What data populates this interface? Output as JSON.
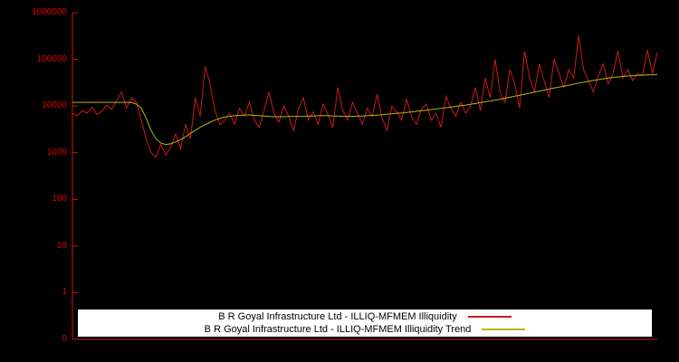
{
  "chart_data": {
    "type": "line",
    "title": "",
    "xlabel": "",
    "ylabel": "",
    "y_scale": "log",
    "ylog_min": -1,
    "ylog_max": 6,
    "grid": false,
    "legend_position": "bottom-center",
    "background_color": "#000000",
    "axis_color": "#cc1414",
    "tick_label_color": "#e00000",
    "y_ticks": [
      {
        "label": "1000000",
        "log": 6
      },
      {
        "label": "100000",
        "log": 5
      },
      {
        "label": "10000",
        "log": 4
      },
      {
        "label": "1000",
        "log": 3
      },
      {
        "label": "100",
        "log": 2
      },
      {
        "label": "10",
        "log": 1
      },
      {
        "label": "1",
        "log": 0
      },
      {
        "label": "0",
        "log": -1
      }
    ],
    "series": [
      {
        "name": "B R Goyal Infrastructure Ltd - ILLIQ-MFMEM Illiquidity",
        "color": "#cc1a1a",
        "values": [
          7000,
          6200,
          8000,
          7000,
          9500,
          6500,
          7800,
          10500,
          8500,
          13000,
          20000,
          9000,
          15000,
          12000,
          5000,
          2000,
          1000,
          800,
          1500,
          900,
          1300,
          2500,
          1200,
          4000,
          2000,
          15000,
          6000,
          70000,
          30000,
          8000,
          4000,
          5000,
          7000,
          4000,
          9000,
          6000,
          12000,
          5000,
          3500,
          8000,
          20000,
          7000,
          4500,
          10000,
          6000,
          3000,
          9000,
          15000,
          5000,
          7500,
          4000,
          11000,
          6500,
          3500,
          25000,
          8000,
          5000,
          12000,
          7000,
          4000,
          9000,
          6000,
          18000,
          5500,
          3000,
          10000,
          7500,
          5000,
          14000,
          6000,
          4000,
          8500,
          11000,
          5000,
          7000,
          3500,
          16000,
          9000,
          6000,
          12000,
          7000,
          10000,
          25000,
          8000,
          40000,
          15000,
          100000,
          20000,
          12000,
          60000,
          30000,
          9000,
          150000,
          40000,
          20000,
          80000,
          35000,
          15000,
          100000,
          50000,
          25000,
          60000,
          40000,
          330000,
          60000,
          35000,
          20000,
          45000,
          80000,
          30000,
          50000,
          150000,
          40000,
          60000,
          35000,
          50000,
          45000,
          160000,
          50000,
          140000
        ]
      },
      {
        "name": "B R Goyal Infrastructure Ltd - ILLIQ-MFMEM Illiquidity Trend",
        "color": "#b5b513",
        "values": [
          12000,
          12000,
          12000,
          12000,
          12000,
          12000,
          12000,
          12000,
          12000,
          12000,
          12000,
          12000,
          12000,
          11000,
          9000,
          5500,
          3000,
          2000,
          1600,
          1500,
          1550,
          1700,
          1900,
          2200,
          2600,
          3000,
          3500,
          4000,
          4500,
          5000,
          5400,
          5800,
          6000,
          6200,
          6300,
          6400,
          6400,
          6300,
          6200,
          6100,
          6000,
          5900,
          5900,
          5900,
          6000,
          6000,
          6000,
          6000,
          6100,
          6100,
          6200,
          6200,
          6200,
          6100,
          6100,
          6000,
          6000,
          6000,
          6100,
          6100,
          6200,
          6300,
          6400,
          6500,
          6700,
          6800,
          7000,
          7100,
          7300,
          7500,
          7700,
          7900,
          8100,
          8400,
          8600,
          8900,
          9200,
          9500,
          9800,
          10200,
          10500,
          10900,
          11300,
          11800,
          12300,
          12800,
          13400,
          14000,
          14700,
          15400,
          16200,
          17000,
          17900,
          18800,
          19800,
          20800,
          21900,
          23000,
          24200,
          25400,
          26700,
          28000,
          29400,
          30800,
          32300,
          33800,
          35300,
          36800,
          38300,
          39800,
          41000,
          42000,
          43000,
          44000,
          44800,
          45500,
          46000,
          46500,
          46800,
          47000
        ]
      }
    ]
  }
}
